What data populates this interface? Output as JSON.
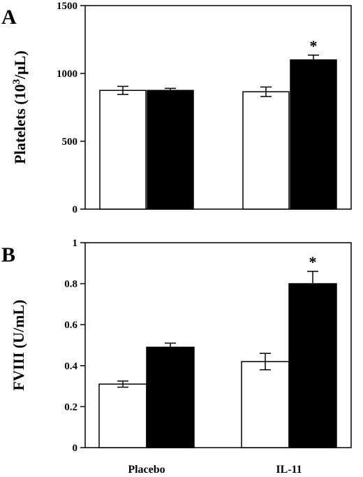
{
  "chart_data": [
    {
      "type": "bar",
      "panel_label": "A",
      "title": "",
      "xlabel": "",
      "ylabel": "Platelets (10³/μL)",
      "ylabel_parts": [
        "Platelets (10",
        "3",
        "/μL)"
      ],
      "ylim": [
        0,
        1500
      ],
      "yticks": [
        0,
        500,
        1000,
        1500
      ],
      "categories": [
        "Placebo",
        "IL-11"
      ],
      "category_labels_shown": false,
      "series": [
        {
          "color": "#ffffff",
          "values": [
            875,
            865
          ],
          "errors": [
            30,
            35
          ]
        },
        {
          "color": "#000000",
          "values": [
            875,
            1100
          ],
          "errors": [
            15,
            35
          ]
        }
      ],
      "annotations": [
        {
          "text": "*",
          "category": "IL-11",
          "series": 1
        }
      ],
      "grid": false,
      "legend": "none"
    },
    {
      "type": "bar",
      "panel_label": "B",
      "title": "",
      "xlabel": "",
      "ylabel": "FVIII (U/mL)",
      "ylim": [
        0,
        1
      ],
      "yticks": [
        0,
        0.2,
        0.4,
        0.6,
        0.8,
        1
      ],
      "ytick_labels": [
        "0",
        "0.2",
        "0.4",
        "0.6",
        "0.8",
        "1"
      ],
      "categories": [
        "Placebo",
        "IL-11"
      ],
      "category_labels_shown": true,
      "series": [
        {
          "color": "#ffffff",
          "values": [
            0.31,
            0.42
          ],
          "errors": [
            0.015,
            0.04
          ]
        },
        {
          "color": "#000000",
          "values": [
            0.49,
            0.8
          ],
          "errors": [
            0.02,
            0.06
          ]
        }
      ],
      "annotations": [
        {
          "text": "*",
          "category": "IL-11",
          "series": 1
        }
      ],
      "grid": false,
      "legend": "none"
    }
  ]
}
